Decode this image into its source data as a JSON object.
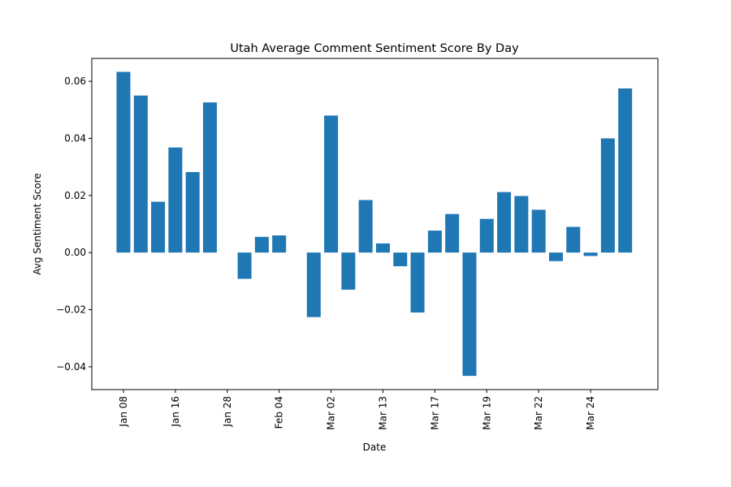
{
  "chart_data": {
    "type": "bar",
    "title": "Utah Average Comment Sentiment Score By Day",
    "xlabel": "Date",
    "ylabel": "Avg Sentiment Score",
    "ylim": [
      -0.048,
      0.068
    ],
    "yticks": [
      -0.04,
      -0.02,
      0.0,
      0.02,
      0.04,
      0.06
    ],
    "ytick_labels": [
      "−0.04",
      "−0.02",
      "0.00",
      "0.02",
      "0.04",
      "0.06"
    ],
    "xtick_labels": [
      "Jan 08",
      "Jan 16",
      "Jan 28",
      "Feb 04",
      "Mar 02",
      "Mar 13",
      "Mar 17",
      "Mar 19",
      "Mar 22",
      "Mar 24"
    ],
    "xtick_positions": [
      0,
      3,
      6,
      9,
      12,
      15,
      18,
      21,
      24,
      27
    ],
    "bar_color": "#1f77b4",
    "grid": false,
    "bars": [
      {
        "x": 0,
        "value": 0.0633
      },
      {
        "x": 1,
        "value": 0.055
      },
      {
        "x": 2,
        "value": 0.0178
      },
      {
        "x": 3,
        "value": 0.0368
      },
      {
        "x": 4,
        "value": 0.0282
      },
      {
        "x": 5,
        "value": 0.0526
      },
      {
        "x": 7,
        "value": -0.0092
      },
      {
        "x": 8,
        "value": 0.0055
      },
      {
        "x": 9,
        "value": 0.006
      },
      {
        "x": 11,
        "value": -0.0226
      },
      {
        "x": 12,
        "value": 0.048
      },
      {
        "x": 13,
        "value": -0.013
      },
      {
        "x": 14,
        "value": 0.0184
      },
      {
        "x": 15,
        "value": 0.0032
      },
      {
        "x": 16,
        "value": -0.0048
      },
      {
        "x": 17,
        "value": -0.021
      },
      {
        "x": 18,
        "value": 0.0077
      },
      {
        "x": 19,
        "value": 0.0135
      },
      {
        "x": 20,
        "value": -0.0432
      },
      {
        "x": 21,
        "value": 0.0118
      },
      {
        "x": 22,
        "value": 0.0212
      },
      {
        "x": 23,
        "value": 0.0198
      },
      {
        "x": 24,
        "value": 0.015
      },
      {
        "x": 25,
        "value": -0.003
      },
      {
        "x": 26,
        "value": 0.009
      },
      {
        "x": 27,
        "value": -0.0012
      },
      {
        "x": 28,
        "value": 0.04
      },
      {
        "x": 29,
        "value": 0.0575
      }
    ]
  }
}
